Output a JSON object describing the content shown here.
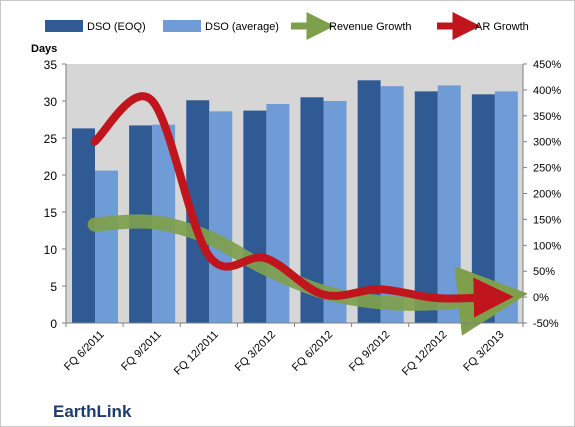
{
  "chart_data": {
    "type": "bar",
    "title": "",
    "brand": "EarthLink",
    "ylabel_left": "Days",
    "ylim_left": [
      0,
      35
    ],
    "yticks_left": [
      "0",
      "5",
      "10",
      "15",
      "20",
      "25",
      "30",
      "35"
    ],
    "ylim_right": [
      -50,
      450
    ],
    "yticks_right": [
      "-50%",
      "0%",
      "50%",
      "100%",
      "150%",
      "200%",
      "250%",
      "300%",
      "350%",
      "400%",
      "450%"
    ],
    "categories": [
      "FQ 6/2011",
      "FQ 9/2011",
      "FQ 12/2011",
      "FQ 3/2012",
      "FQ 6/2012",
      "FQ 9/2012",
      "FQ 12/2012",
      "FQ 3/2013"
    ],
    "grid": false,
    "legend_position": "top",
    "series": [
      {
        "name": "DSO (EOQ)",
        "kind": "bar",
        "axis": "left",
        "color": "#2f5a93",
        "values": [
          26.3,
          26.7,
          30.1,
          28.7,
          30.5,
          32.8,
          31.3,
          30.9
        ]
      },
      {
        "name": "DSO (average)",
        "kind": "bar",
        "axis": "left",
        "color": "#6f9bd7",
        "values": [
          20.6,
          26.8,
          28.6,
          29.6,
          30.0,
          32.0,
          32.1,
          31.3
        ]
      },
      {
        "name": "Revenue Growth",
        "kind": "line",
        "axis": "right",
        "color": "#7f9f4c",
        "values": [
          140,
          145,
          115,
          55,
          10,
          -10,
          -12,
          0
        ]
      },
      {
        "name": "AR Growth",
        "kind": "line",
        "axis": "right",
        "color": "#c0151d",
        "values": [
          300,
          380,
          80,
          75,
          5,
          15,
          -2,
          0
        ]
      }
    ]
  }
}
